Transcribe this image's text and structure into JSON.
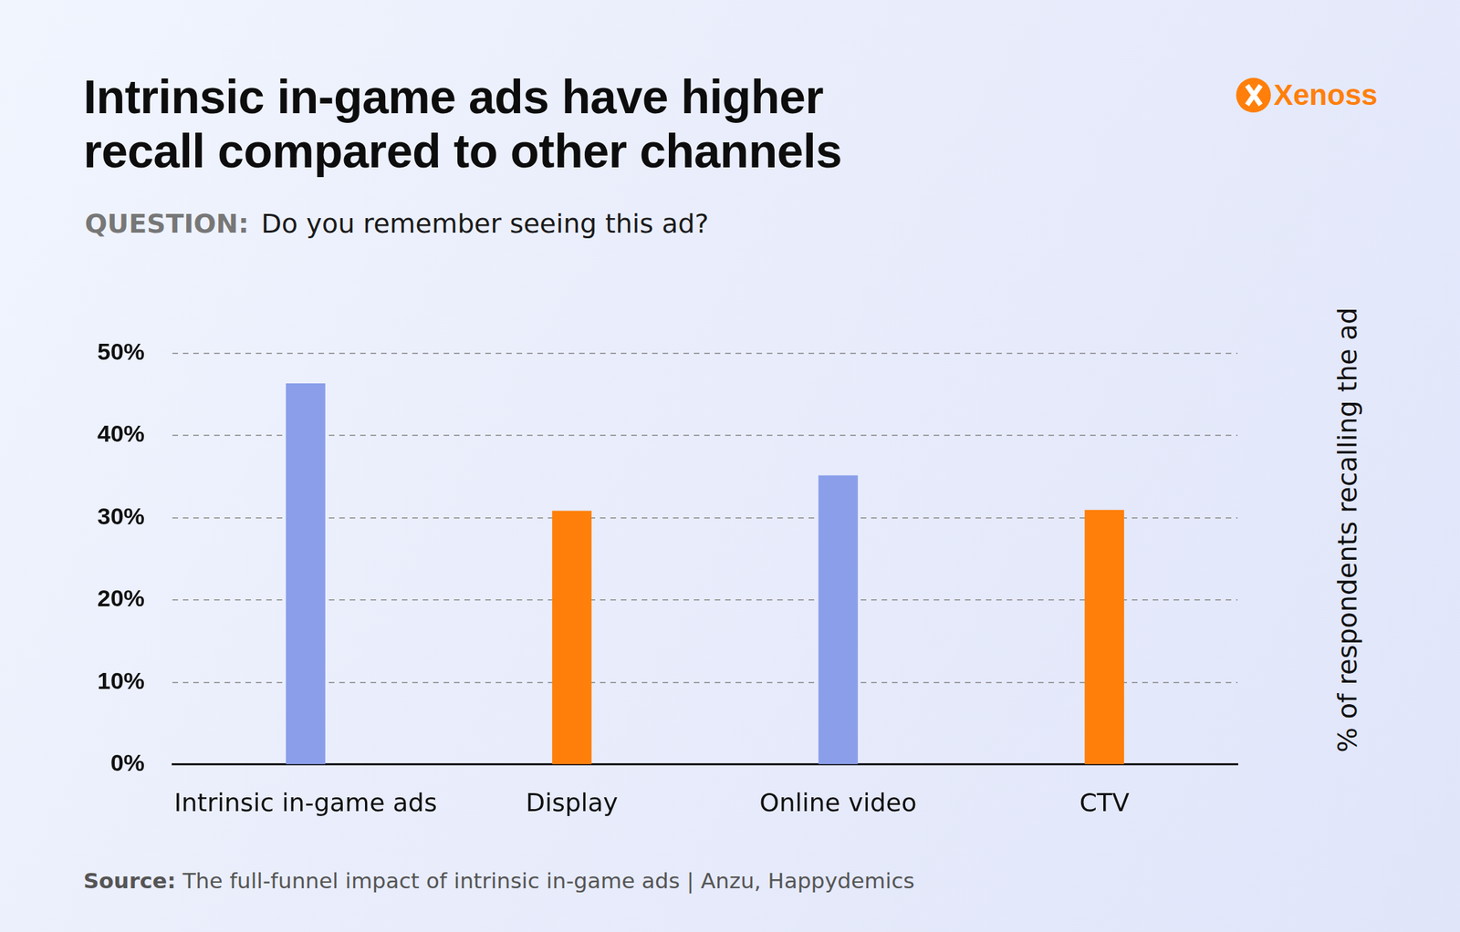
{
  "chart_data": {
    "type": "bar",
    "title": [
      "Intrinsic in-game ads have higher",
      "recall compared to other channels"
    ],
    "subtitle": {
      "label": "QUESTION:",
      "text": "Do you remember seeing this ad?"
    },
    "categories": [
      "Intrinsic in-game ads",
      "Display",
      "Online video",
      "CTV"
    ],
    "values": [
      46.3,
      30.8,
      35.1,
      30.9
    ],
    "colors": [
      "#8a9eea",
      "#ff7f0a",
      "#8a9eea",
      "#ff7f0a"
    ],
    "ylabel": "% of respondents recalling the ad",
    "ylim": [
      0,
      50
    ],
    "yticks": [
      {
        "value": 0,
        "label": "0%"
      },
      {
        "value": 10,
        "label": "10%"
      },
      {
        "value": 20,
        "label": "20%"
      },
      {
        "value": 30,
        "label": "30%"
      },
      {
        "value": 40,
        "label": "40%"
      },
      {
        "value": 50,
        "label": "50%"
      }
    ],
    "grid": true
  },
  "source": {
    "label": "Source:",
    "text": "The full-funnel impact of intrinsic in-game ads |  Anzu, Happydemics"
  },
  "logo": "Xenoss"
}
